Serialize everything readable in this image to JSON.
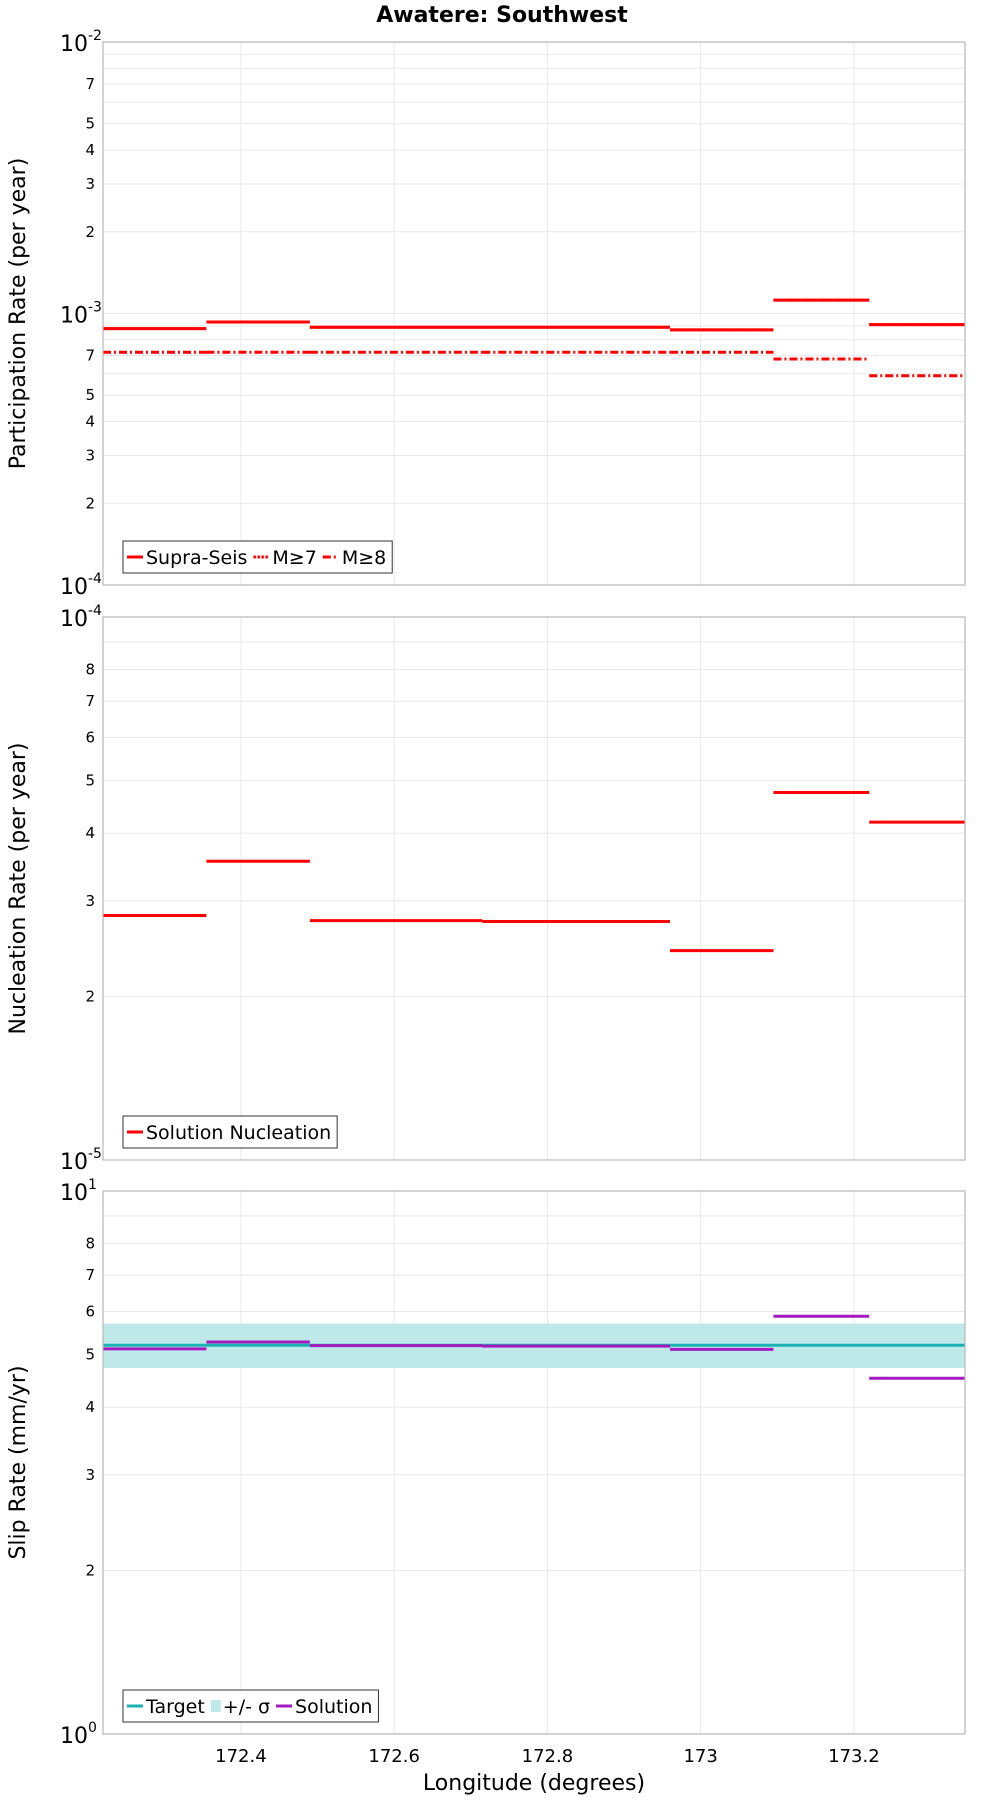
{
  "title": "Awatere: Southwest",
  "colors": {
    "solution_red": "#ff0000",
    "target_teal": "#1ab2b2",
    "sigma_band": "#bfe9e9",
    "solution_purple": "#a21ac0",
    "grid": "#e8e8e8",
    "frame": "#b8b8b8"
  },
  "chart_data": [
    {
      "type": "line",
      "scale": "log",
      "ylabel": "Participation Rate (per year)",
      "ylim": [
        0.0001,
        0.01
      ],
      "grid": true,
      "legend_placement": "bottom-left",
      "y_ticks": [
        {
          "value": 0.0001,
          "base": "10",
          "exp": "-4"
        },
        {
          "value": 0.0002,
          "label": "2"
        },
        {
          "value": 0.0003,
          "label": "3"
        },
        {
          "value": 0.0004,
          "label": "4"
        },
        {
          "value": 0.0005,
          "label": "5"
        },
        {
          "value": 0.0007,
          "label": "7"
        },
        {
          "value": 0.001,
          "base": "10",
          "exp": "-3"
        },
        {
          "value": 0.002,
          "label": "2"
        },
        {
          "value": 0.003,
          "label": "3"
        },
        {
          "value": 0.004,
          "label": "4"
        },
        {
          "value": 0.005,
          "label": "5"
        },
        {
          "value": 0.007,
          "label": "7"
        },
        {
          "value": 0.01,
          "base": "10",
          "exp": "-2"
        }
      ],
      "series": [
        {
          "name": "Supra-Seis",
          "style": "solid",
          "color": "#ff0000",
          "segments": [
            [
              172.22,
              172.355,
              0.00088
            ],
            [
              172.355,
              172.49,
              0.00093
            ],
            [
              172.49,
              172.715,
              0.00089
            ],
            [
              172.715,
              172.96,
              0.00089
            ],
            [
              172.96,
              173.095,
              0.00087
            ],
            [
              173.095,
              173.22,
              0.00112
            ],
            [
              173.22,
              173.345,
              0.00091
            ]
          ]
        },
        {
          "name": "M≥7",
          "style": "dotted",
          "color": "#ff0000",
          "segments": [
            [
              172.22,
              172.355,
              0.00088
            ],
            [
              172.355,
              172.49,
              0.00093
            ],
            [
              172.49,
              172.715,
              0.00089
            ],
            [
              172.715,
              172.96,
              0.00089
            ],
            [
              172.96,
              173.095,
              0.00087
            ],
            [
              173.095,
              173.22,
              0.00112
            ],
            [
              173.22,
              173.345,
              0.00091
            ]
          ]
        },
        {
          "name": "M≥8",
          "style": "dashdot",
          "color": "#ff0000",
          "segments": [
            [
              172.22,
              172.355,
              0.00072
            ],
            [
              172.355,
              172.49,
              0.00072
            ],
            [
              172.49,
              172.715,
              0.00072
            ],
            [
              172.715,
              172.96,
              0.00072
            ],
            [
              172.96,
              173.095,
              0.00072
            ],
            [
              173.095,
              173.22,
              0.00068
            ],
            [
              173.22,
              173.345,
              0.00059
            ]
          ]
        }
      ]
    },
    {
      "type": "line",
      "scale": "log",
      "ylabel": "Nucleation Rate (per year)",
      "ylim": [
        1e-05,
        0.0001
      ],
      "grid": true,
      "legend_placement": "bottom-left",
      "y_ticks": [
        {
          "value": 1e-05,
          "base": "10",
          "exp": "-5"
        },
        {
          "value": 2e-05,
          "label": "2"
        },
        {
          "value": 3e-05,
          "label": "3"
        },
        {
          "value": 4e-05,
          "label": "4"
        },
        {
          "value": 5e-05,
          "label": "5"
        },
        {
          "value": 6e-05,
          "label": "6"
        },
        {
          "value": 7e-05,
          "label": "7"
        },
        {
          "value": 8e-05,
          "label": "8"
        },
        {
          "value": 0.0001,
          "base": "10",
          "exp": "-4"
        }
      ],
      "series": [
        {
          "name": "Solution Nucleation",
          "style": "solid",
          "color": "#ff0000",
          "segments": [
            [
              172.22,
              172.355,
              2.82e-05
            ],
            [
              172.355,
              172.49,
              3.55e-05
            ],
            [
              172.49,
              172.715,
              2.76e-05
            ],
            [
              172.715,
              172.96,
              2.75e-05
            ],
            [
              172.96,
              173.095,
              2.43e-05
            ],
            [
              173.095,
              173.22,
              4.75e-05
            ],
            [
              173.22,
              173.345,
              4.19e-05
            ]
          ]
        }
      ]
    },
    {
      "type": "line",
      "scale": "log",
      "ylabel": "Slip Rate (mm/yr)",
      "xlabel": "Longitude (degrees)",
      "xlim": [
        172.22,
        173.345
      ],
      "ylim": [
        1,
        10
      ],
      "grid": true,
      "legend_placement": "bottom-left",
      "x_ticks": [
        {
          "value": 172.4,
          "label": "172.4"
        },
        {
          "value": 172.6,
          "label": "172.6"
        },
        {
          "value": 172.8,
          "label": "172.8"
        },
        {
          "value": 173.0,
          "label": "173"
        },
        {
          "value": 173.2,
          "label": "173.2"
        }
      ],
      "y_ticks": [
        {
          "value": 1,
          "base": "10",
          "exp": "0"
        },
        {
          "value": 2,
          "label": "2"
        },
        {
          "value": 3,
          "label": "3"
        },
        {
          "value": 4,
          "label": "4"
        },
        {
          "value": 5,
          "label": "5"
        },
        {
          "value": 6,
          "label": "6"
        },
        {
          "value": 7,
          "label": "7"
        },
        {
          "value": 8,
          "label": "8"
        },
        {
          "value": 10,
          "base": "10",
          "exp": "1"
        }
      ],
      "band": {
        "name": "+/- σ",
        "low": 4.72,
        "high": 5.7,
        "color": "#bfe9e9"
      },
      "series": [
        {
          "name": "Target",
          "style": "solid",
          "color": "#1ab2b2",
          "segments": [
            [
              172.22,
              173.345,
              5.2
            ]
          ]
        },
        {
          "name": "Solution",
          "style": "solid",
          "color": "#a21ac0",
          "segments": [
            [
              172.22,
              172.355,
              5.12
            ],
            [
              172.355,
              172.49,
              5.27
            ],
            [
              172.49,
              172.715,
              5.19
            ],
            [
              172.715,
              172.96,
              5.18
            ],
            [
              172.96,
              173.095,
              5.11
            ],
            [
              173.095,
              173.22,
              5.88
            ],
            [
              173.22,
              173.345,
              4.52
            ]
          ]
        }
      ]
    }
  ]
}
